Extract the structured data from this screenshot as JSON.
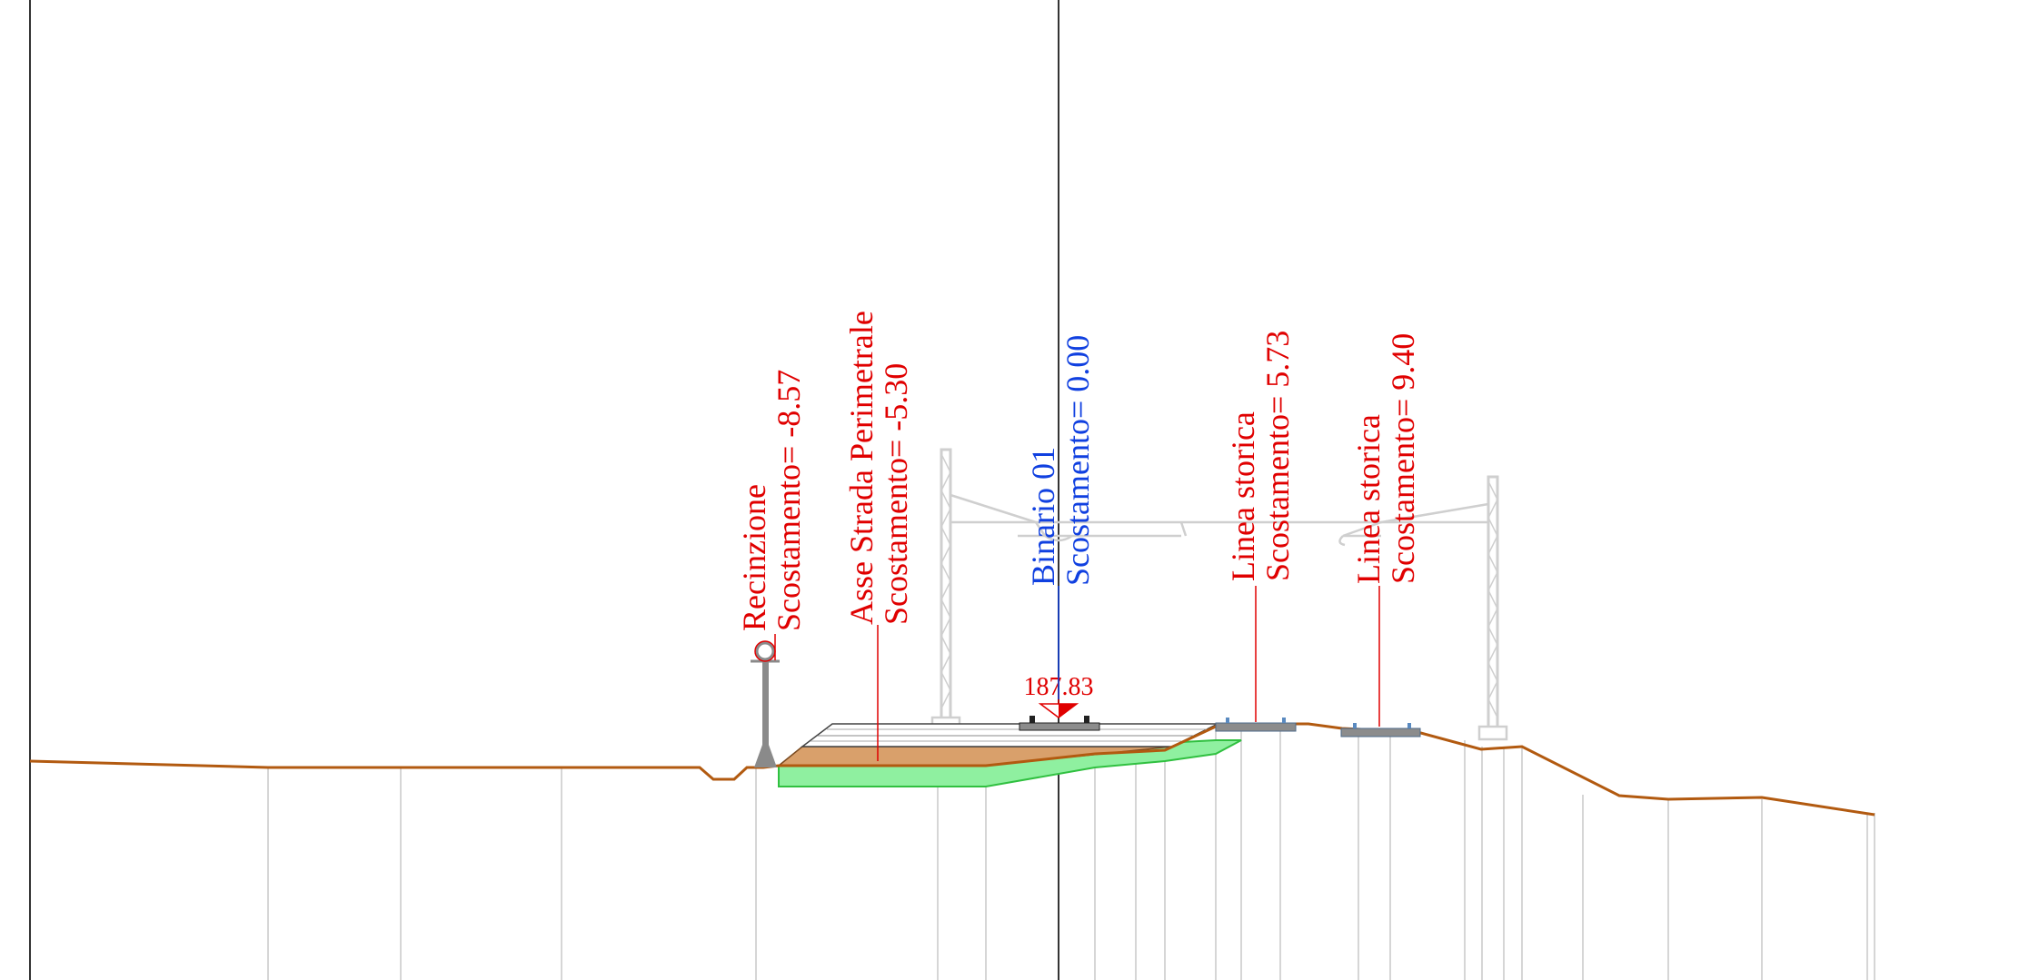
{
  "section_labels": {
    "recinzione": {
      "name": "Recinzione",
      "offset": "Scostamento= -8.57"
    },
    "asse_strada": {
      "name": "Asse Strada Perimetrale",
      "offset": "Scostamento= -5.30"
    },
    "binario": {
      "name": "Binario 01",
      "offset": "Scostamento= 0.00"
    },
    "linea_storica_1": {
      "name": "Linea storica",
      "offset": "Scostamento= 5.73"
    },
    "linea_storica_2": {
      "name": "Linea storica",
      "offset": "Scostamento= 9.40"
    }
  },
  "elevation_marker": {
    "value": "187.83"
  },
  "colors": {
    "label_red": "#e00000",
    "label_blue": "#1040e0",
    "ground_line": "#b25a10",
    "embankment_fill": "#d9a06b",
    "subgrade_green": "#8ff0a0",
    "subgrade_green_stroke": "#30c040",
    "ballast_gray": "#8c8c8c",
    "catenary_gray": "#cfcfcf",
    "frame_line": "#333333",
    "guide_line": "#c8c8c8"
  }
}
